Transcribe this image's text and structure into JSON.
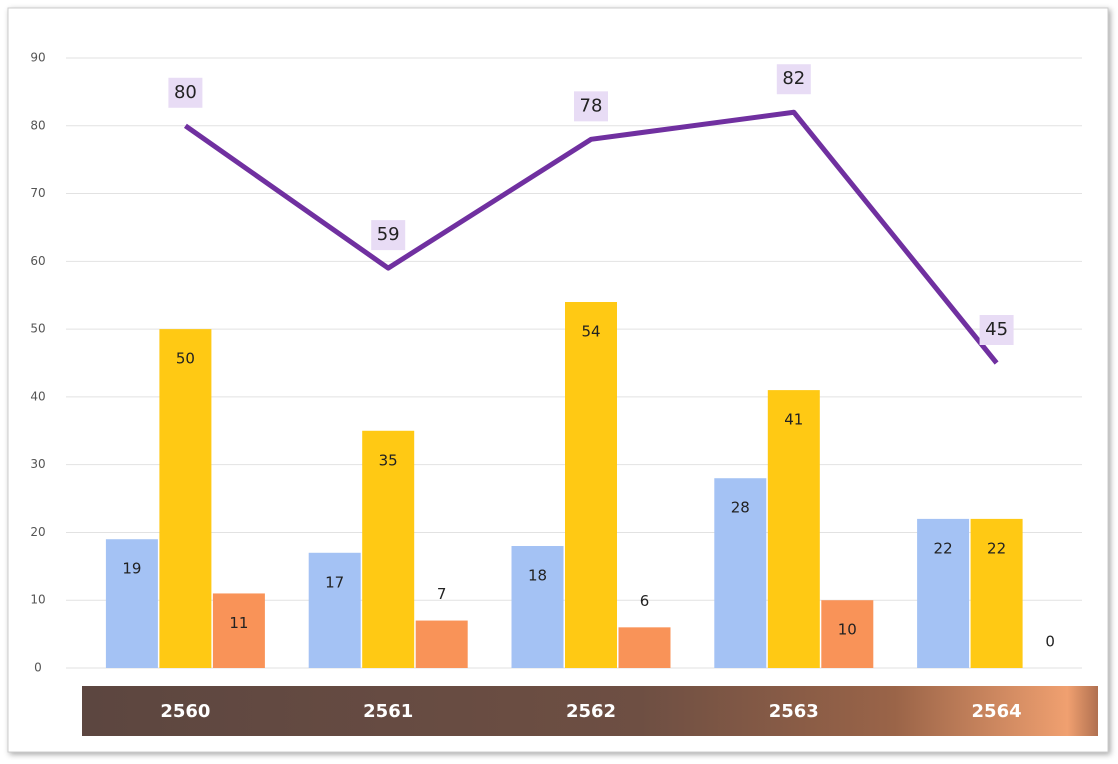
{
  "chart_data": {
    "type": "bar",
    "categories": [
      "2560",
      "2561",
      "2562",
      "2563",
      "2564"
    ],
    "series": [
      {
        "type": "bar",
        "color": "#a4c2f4",
        "values": [
          19,
          17,
          18,
          28,
          22
        ]
      },
      {
        "type": "bar",
        "color": "#ffc914",
        "values": [
          50,
          35,
          54,
          41,
          22
        ]
      },
      {
        "type": "bar",
        "color": "#f99358",
        "values": [
          11,
          7,
          6,
          10,
          0
        ]
      },
      {
        "type": "line",
        "color": "#7030a0",
        "values": [
          80,
          59,
          78,
          82,
          45
        ]
      }
    ],
    "ylim": [
      0,
      90
    ],
    "yticks": [
      0,
      10,
      20,
      30,
      40,
      50,
      60,
      70,
      80,
      90
    ],
    "grid": true
  }
}
